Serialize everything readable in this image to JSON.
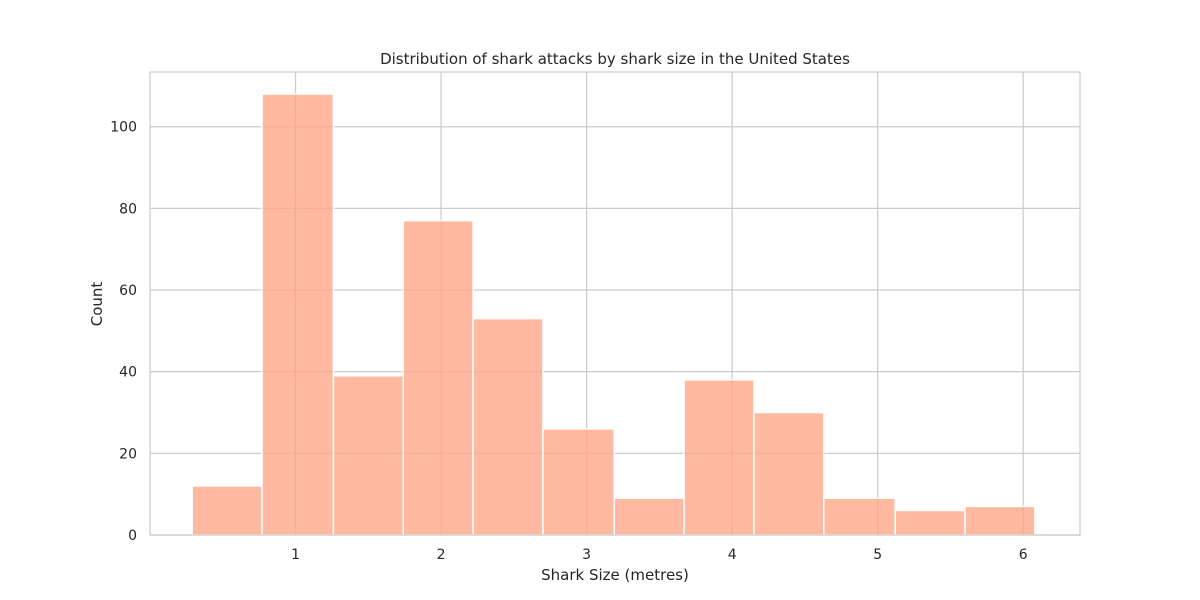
{
  "chart_data": {
    "type": "bar",
    "title": "Distribution of shark attacks by shark size in the United States",
    "xlabel": "Shark Size (metres)",
    "ylabel": "Count",
    "xlim": [
      0.0,
      6.39
    ],
    "ylim": [
      0,
      113.4
    ],
    "xticks": [
      1,
      2,
      3,
      4,
      5,
      6
    ],
    "yticks": [
      0,
      20,
      40,
      60,
      80,
      100
    ],
    "grid": true,
    "legend": "none",
    "bar_color": "#FFA585",
    "bar_opacity": 0.78,
    "bins": [
      {
        "x0": 0.29,
        "x1": 0.77,
        "count": 12
      },
      {
        "x0": 0.77,
        "x1": 1.26,
        "count": 108
      },
      {
        "x0": 1.26,
        "x1": 1.74,
        "count": 39
      },
      {
        "x0": 1.74,
        "x1": 2.22,
        "count": 77
      },
      {
        "x0": 2.22,
        "x1": 2.7,
        "count": 53
      },
      {
        "x0": 2.7,
        "x1": 3.19,
        "count": 26
      },
      {
        "x0": 3.19,
        "x1": 3.67,
        "count": 9
      },
      {
        "x0": 3.67,
        "x1": 4.15,
        "count": 38
      },
      {
        "x0": 4.15,
        "x1": 4.63,
        "count": 30
      },
      {
        "x0": 4.63,
        "x1": 5.12,
        "count": 9
      },
      {
        "x0": 5.12,
        "x1": 5.6,
        "count": 6
      },
      {
        "x0": 5.6,
        "x1": 6.08,
        "count": 7
      }
    ]
  }
}
